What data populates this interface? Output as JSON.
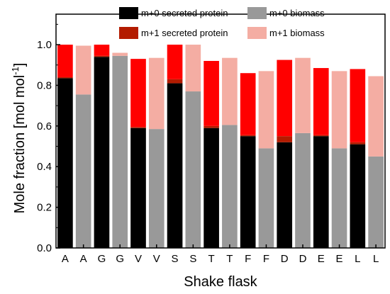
{
  "chart_data": {
    "type": "bar",
    "stacked": true,
    "categories": [
      "A",
      "A",
      "G",
      "G",
      "V",
      "V",
      "S",
      "S",
      "T",
      "T",
      "F",
      "F",
      "D",
      "D",
      "E",
      "E",
      "L",
      "L"
    ],
    "series": [
      {
        "name": "m+0 secreted protein",
        "color": "#000000",
        "values": [
          0.835,
          0,
          0.94,
          0,
          0.59,
          0,
          0.81,
          0,
          0.59,
          0,
          0.55,
          0,
          0.52,
          0,
          0.55,
          0,
          0.51,
          0
        ]
      },
      {
        "name": "m+1 secreted protein",
        "color": "#b31b00",
        "values": [
          0.005,
          0,
          0.005,
          0,
          0.005,
          0,
          0.02,
          0,
          0.01,
          0,
          0.005,
          0,
          0.03,
          0,
          0.005,
          0,
          0.01,
          0
        ]
      },
      {
        "name": "m+0 biomass",
        "color": "#999999",
        "values": [
          0,
          0.755,
          0,
          0.945,
          0,
          0.585,
          0,
          0.77,
          0,
          0.605,
          0,
          0.49,
          0,
          0.565,
          0,
          0.49,
          0,
          0.45
        ]
      },
      {
        "name": "m+1 biomass",
        "color": "#f4ada3",
        "values": [
          0,
          0.24,
          0,
          0.015,
          0,
          0.35,
          0,
          0.23,
          0,
          0.33,
          0,
          0.38,
          0,
          0.37,
          0,
          0.38,
          0,
          0.395
        ]
      }
    ],
    "upper_segments": {
      "color": "#ff0000",
      "values": [
        0.16,
        0,
        0.055,
        0,
        0.335,
        0,
        0.17,
        0,
        0.32,
        0,
        0.305,
        0,
        0.375,
        0,
        0.33,
        0,
        0.36,
        0
      ]
    },
    "ylabel": "Mole fraction [mol mol⁻¹]",
    "xlabel": "Shake flask",
    "ylim": [
      0,
      1.15
    ],
    "yticks": [
      "0.0",
      "0.2",
      "0.4",
      "0.6",
      "0.8",
      "1.0"
    ],
    "legend_position": "top",
    "legend": [
      {
        "label": "m+0 secreted protein",
        "color": "#000000"
      },
      {
        "label": "m+0 biomass",
        "color": "#999999"
      },
      {
        "label": "m+1 secreted protein",
        "color": "#b31b00"
      },
      {
        "label": "m+1 biomass",
        "color": "#f4ada3"
      }
    ]
  }
}
